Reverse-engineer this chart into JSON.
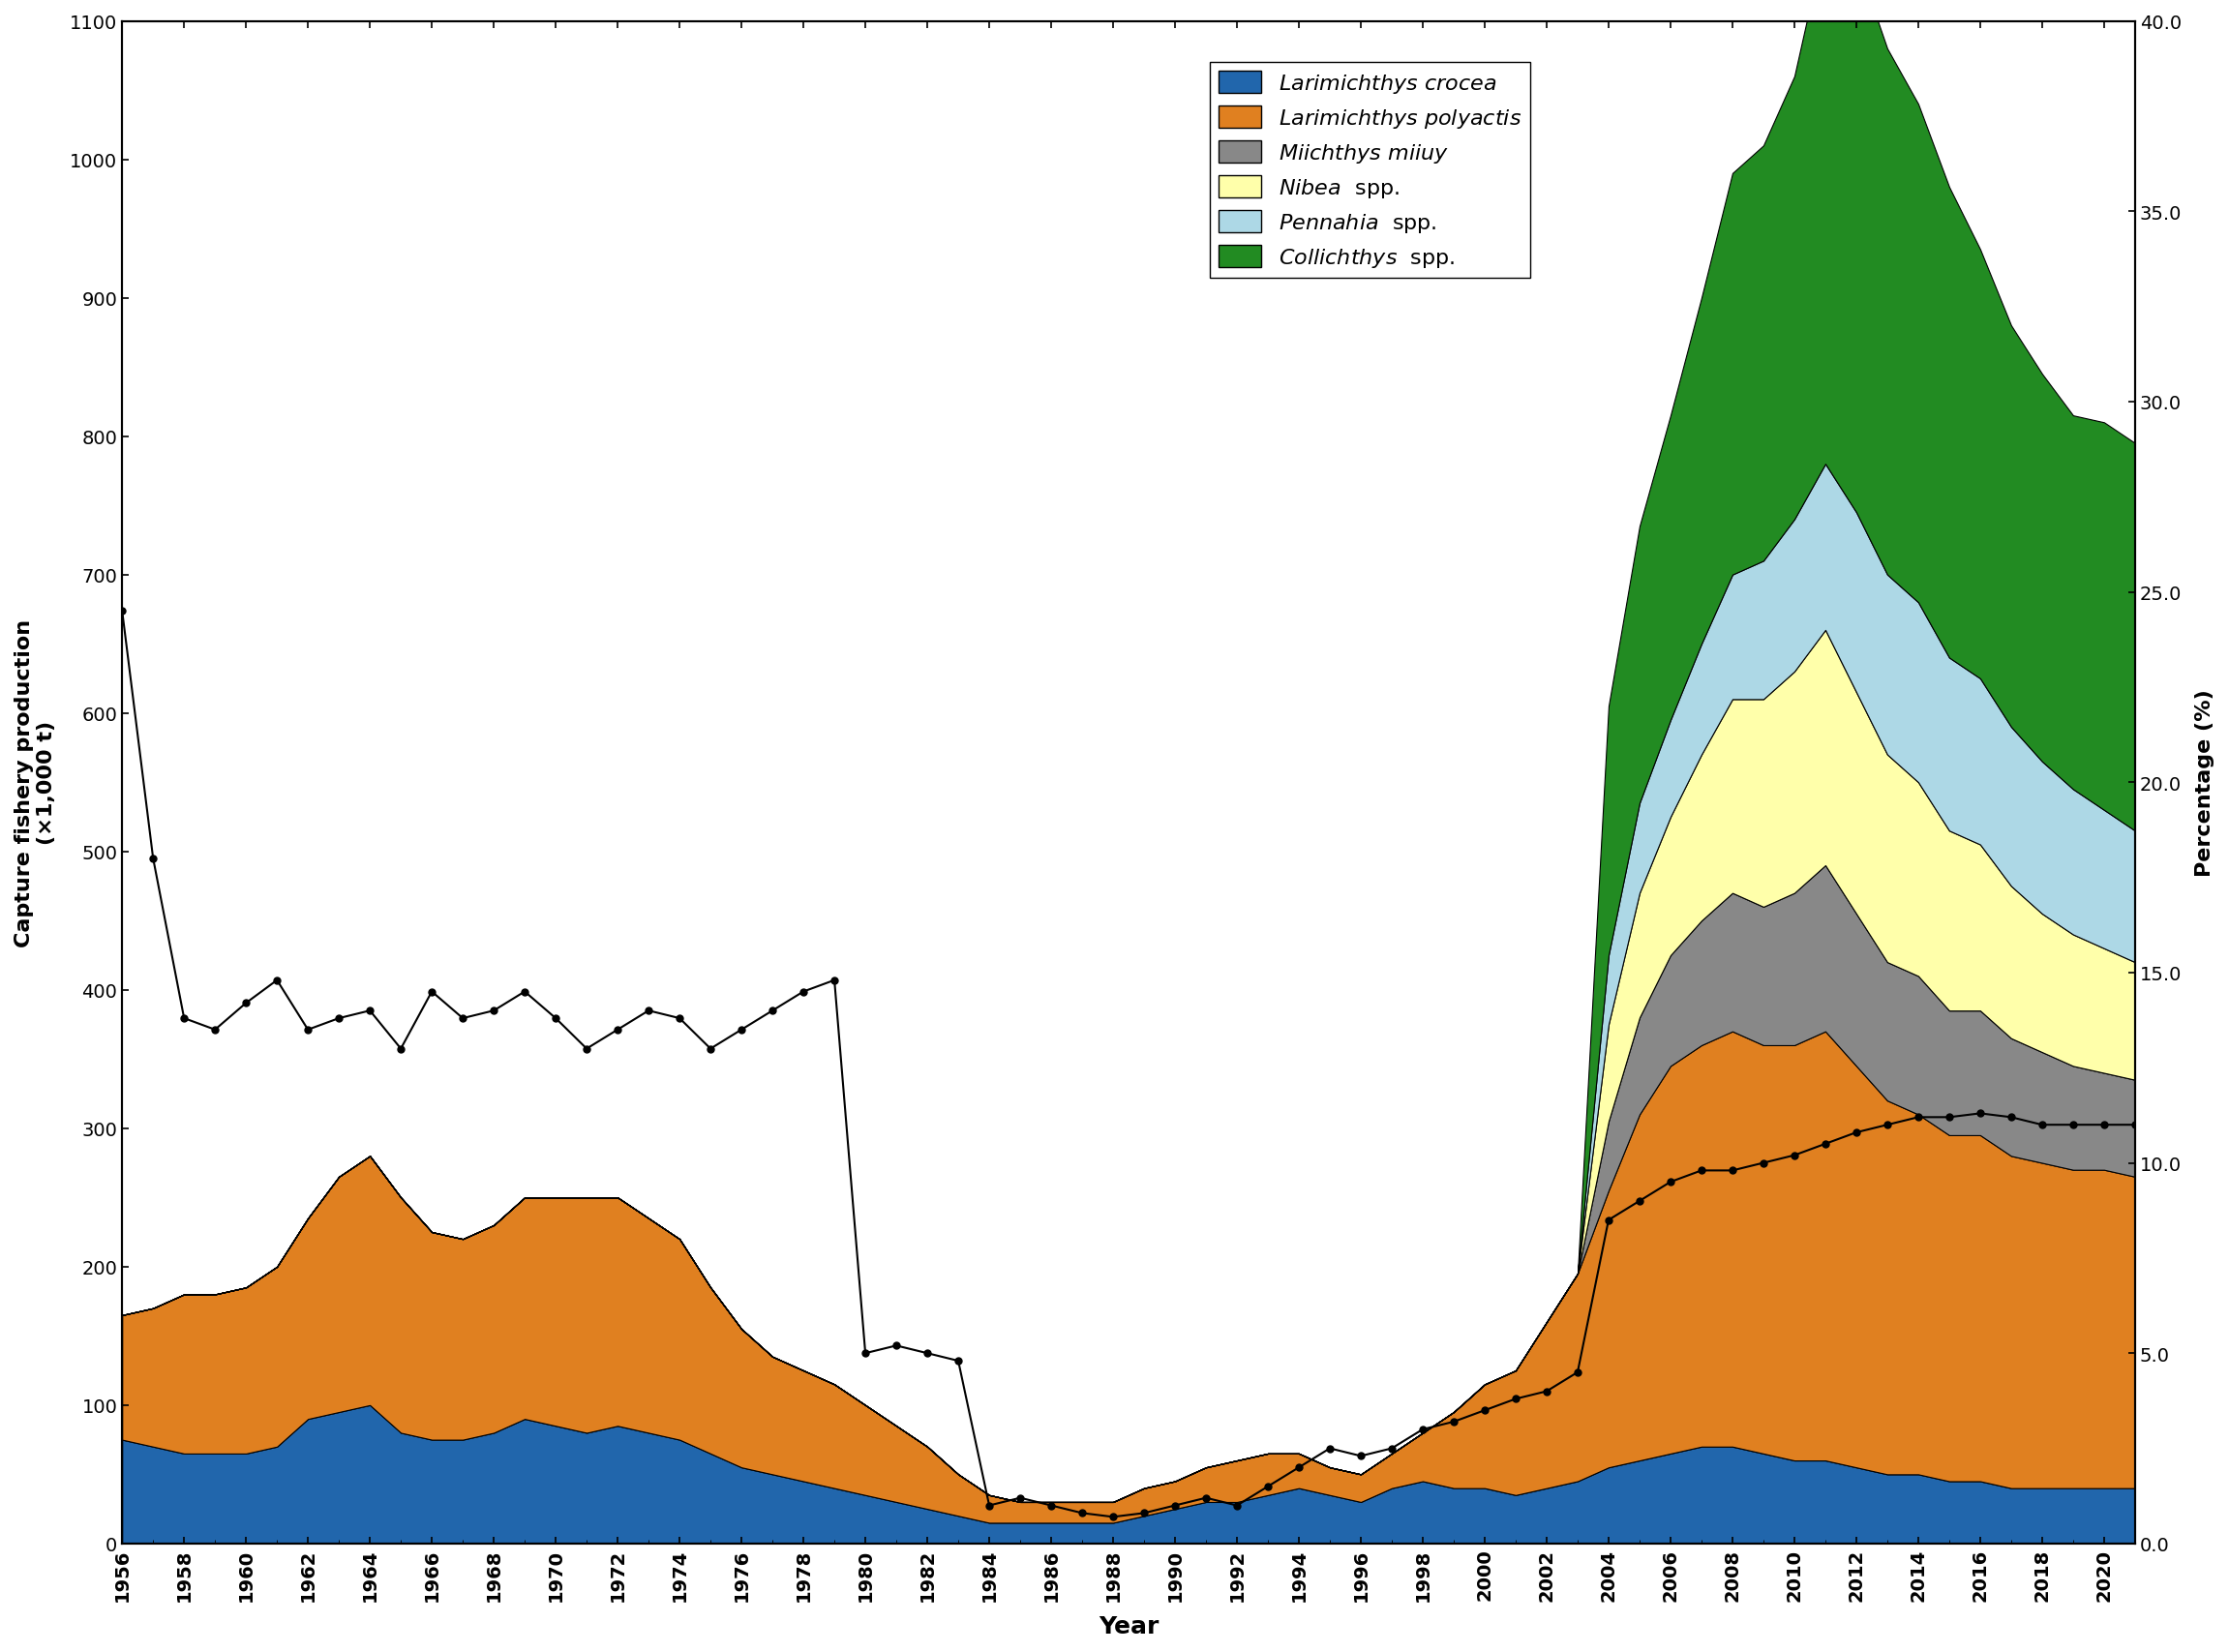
{
  "years": [
    1956,
    1957,
    1958,
    1959,
    1960,
    1961,
    1962,
    1963,
    1964,
    1965,
    1966,
    1967,
    1968,
    1969,
    1970,
    1971,
    1972,
    1973,
    1974,
    1975,
    1976,
    1977,
    1978,
    1979,
    1980,
    1981,
    1982,
    1983,
    1984,
    1985,
    1986,
    1987,
    1988,
    1989,
    1990,
    1991,
    1992,
    1993,
    1994,
    1995,
    1996,
    1997,
    1998,
    1999,
    2000,
    2001,
    2002,
    2003,
    2004,
    2005,
    2006,
    2007,
    2008,
    2009,
    2010,
    2011,
    2012,
    2013,
    2014,
    2015,
    2016,
    2017,
    2018,
    2019,
    2020,
    2021
  ],
  "larimichthys_crocea": [
    75,
    70,
    65,
    65,
    65,
    70,
    90,
    95,
    100,
    80,
    75,
    75,
    80,
    90,
    85,
    80,
    85,
    80,
    75,
    65,
    55,
    50,
    45,
    40,
    35,
    30,
    25,
    20,
    15,
    15,
    15,
    15,
    15,
    20,
    25,
    30,
    30,
    35,
    40,
    35,
    30,
    40,
    45,
    40,
    40,
    35,
    40,
    45,
    55,
    60,
    65,
    70,
    70,
    65,
    60,
    60,
    55,
    50,
    50,
    45,
    45,
    40,
    40,
    40,
    40,
    40
  ],
  "larimichthys_polyactis": [
    90,
    100,
    115,
    115,
    120,
    130,
    145,
    170,
    180,
    170,
    150,
    145,
    150,
    160,
    165,
    170,
    165,
    155,
    145,
    120,
    100,
    85,
    80,
    75,
    65,
    55,
    45,
    30,
    20,
    15,
    15,
    15,
    15,
    20,
    20,
    25,
    30,
    30,
    25,
    20,
    20,
    25,
    35,
    55,
    75,
    90,
    120,
    150,
    200,
    250,
    280,
    290,
    300,
    295,
    300,
    310,
    290,
    270,
    260,
    250,
    250,
    240,
    235,
    230,
    230,
    225
  ],
  "miichthys_miiuy": [
    0,
    0,
    0,
    0,
    0,
    0,
    0,
    0,
    0,
    0,
    0,
    0,
    0,
    0,
    0,
    0,
    0,
    0,
    0,
    0,
    0,
    0,
    0,
    0,
    0,
    0,
    0,
    0,
    0,
    0,
    0,
    0,
    0,
    0,
    0,
    0,
    0,
    0,
    0,
    0,
    0,
    0,
    0,
    0,
    0,
    0,
    0,
    0,
    50,
    70,
    80,
    90,
    100,
    100,
    110,
    120,
    110,
    100,
    100,
    90,
    90,
    85,
    80,
    75,
    70,
    70
  ],
  "nibea_spp": [
    0,
    0,
    0,
    0,
    0,
    0,
    0,
    0,
    0,
    0,
    0,
    0,
    0,
    0,
    0,
    0,
    0,
    0,
    0,
    0,
    0,
    0,
    0,
    0,
    0,
    0,
    0,
    0,
    0,
    0,
    0,
    0,
    0,
    0,
    0,
    0,
    0,
    0,
    0,
    0,
    0,
    0,
    0,
    0,
    0,
    0,
    0,
    0,
    70,
    90,
    100,
    120,
    140,
    150,
    160,
    170,
    160,
    150,
    140,
    130,
    120,
    110,
    100,
    95,
    90,
    85
  ],
  "pennahia_spp": [
    0,
    0,
    0,
    0,
    0,
    0,
    0,
    0,
    0,
    0,
    0,
    0,
    0,
    0,
    0,
    0,
    0,
    0,
    0,
    0,
    0,
    0,
    0,
    0,
    0,
    0,
    0,
    0,
    0,
    0,
    0,
    0,
    0,
    0,
    0,
    0,
    0,
    0,
    0,
    0,
    0,
    0,
    0,
    0,
    0,
    0,
    0,
    0,
    50,
    65,
    70,
    80,
    90,
    100,
    110,
    120,
    130,
    130,
    130,
    125,
    120,
    115,
    110,
    105,
    100,
    95
  ],
  "collichthys_spp": [
    0,
    0,
    0,
    0,
    0,
    0,
    0,
    0,
    0,
    0,
    0,
    0,
    0,
    0,
    0,
    0,
    0,
    0,
    0,
    0,
    0,
    0,
    0,
    0,
    0,
    0,
    0,
    0,
    0,
    0,
    0,
    0,
    0,
    0,
    0,
    0,
    0,
    0,
    0,
    0,
    0,
    0,
    0,
    0,
    0,
    0,
    0,
    0,
    180,
    200,
    220,
    250,
    290,
    300,
    320,
    380,
    400,
    380,
    360,
    340,
    310,
    290,
    280,
    270,
    280,
    280
  ],
  "line_pct": [
    24.5,
    18.0,
    13.8,
    13.5,
    14.2,
    14.8,
    13.5,
    13.8,
    14.0,
    13.0,
    14.5,
    13.8,
    14.0,
    14.5,
    13.8,
    13.0,
    13.5,
    14.0,
    13.8,
    13.0,
    13.5,
    14.0,
    14.5,
    14.8,
    5.0,
    5.2,
    5.0,
    4.8,
    1.0,
    1.2,
    1.0,
    0.8,
    0.7,
    0.8,
    1.0,
    1.2,
    1.0,
    1.5,
    2.0,
    2.5,
    2.3,
    2.5,
    3.0,
    3.2,
    3.5,
    3.8,
    4.0,
    4.5,
    8.5,
    9.0,
    9.5,
    9.8,
    9.8,
    10.0,
    10.2,
    10.5,
    10.8,
    11.0,
    11.2,
    11.2,
    11.3,
    11.2,
    11.0,
    11.0,
    11.0,
    11.0
  ],
  "colors": {
    "larimichthys_crocea": "#2166ac",
    "larimichthys_polyactis": "#e08020",
    "miichthys_miiuy": "#888888",
    "nibea_spp": "#ffffaa",
    "pennahia_spp": "#add8e6",
    "collichthys_spp": "#228B22"
  },
  "ylim_left": [
    0,
    1100
  ],
  "ylim_right": [
    0,
    40
  ],
  "yticks_left": [
    0,
    100,
    200,
    300,
    400,
    500,
    600,
    700,
    800,
    900,
    1000,
    1100
  ],
  "yticks_right": [
    0.0,
    5.0,
    10.0,
    15.0,
    20.0,
    25.0,
    30.0,
    35.0,
    40.0
  ],
  "ylabel_left": "Capture fishery production\n(×1,000 t)",
  "ylabel_right": "Percentage (%)",
  "xlabel": "Year",
  "legend_labels": [
    "Larimichthys crocea",
    "Larimichthys polyactis",
    "Miichthys miiuy",
    "Nibea  spp.",
    "Pennahia  spp.",
    "Collichthys  spp."
  ],
  "background_color": "#ffffff"
}
